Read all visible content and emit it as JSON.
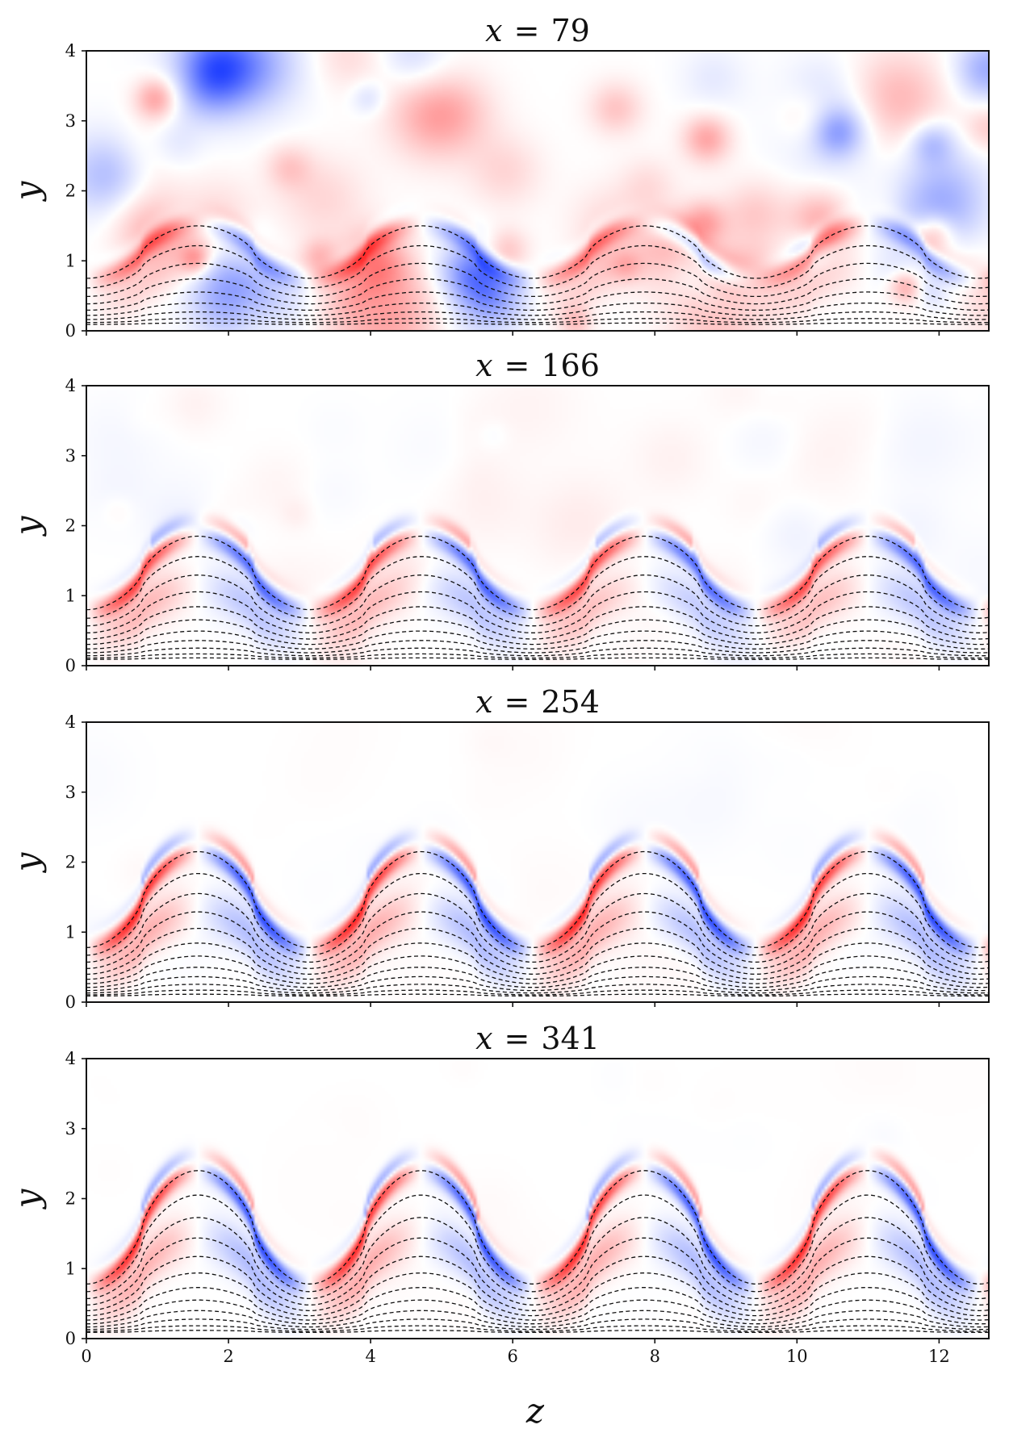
{
  "chart_data": {
    "type": "heatmap",
    "description_colormap": "diverging blue-white-red",
    "colors": {
      "negative": "#1f3fff",
      "positive": "#ff1a1a",
      "zero": "#ffffff"
    },
    "shared_xlabel": "z",
    "shared_ylabel": "y",
    "xlim": [
      0,
      12.7
    ],
    "ylim": [
      0,
      4
    ],
    "xticks": [
      0,
      2,
      4,
      6,
      8,
      10,
      12
    ],
    "yticks": [
      0,
      1,
      2,
      3,
      4
    ],
    "panels": [
      {
        "title_var": "x",
        "title_eq": "=",
        "title_value": "79",
        "streamline_crest_height": 1.5,
        "streamline_trough_height": 0.75,
        "streamline_count": 9,
        "noise_level": 0.55,
        "lobe_intensity": 0.55
      },
      {
        "title_var": "x",
        "title_eq": "=",
        "title_value": "166",
        "streamline_crest_height": 1.85,
        "streamline_trough_height": 0.8,
        "streamline_count": 11,
        "noise_level": 0.08,
        "lobe_intensity": 0.85
      },
      {
        "title_var": "x",
        "title_eq": "=",
        "title_value": "254",
        "streamline_crest_height": 2.15,
        "streamline_trough_height": 0.78,
        "streamline_count": 12,
        "noise_level": 0.03,
        "lobe_intensity": 1.0
      },
      {
        "title_var": "x",
        "title_eq": "=",
        "title_value": "341",
        "streamline_crest_height": 2.4,
        "streamline_trough_height": 0.78,
        "streamline_count": 12,
        "noise_level": 0.02,
        "lobe_intensity": 1.0
      }
    ]
  }
}
